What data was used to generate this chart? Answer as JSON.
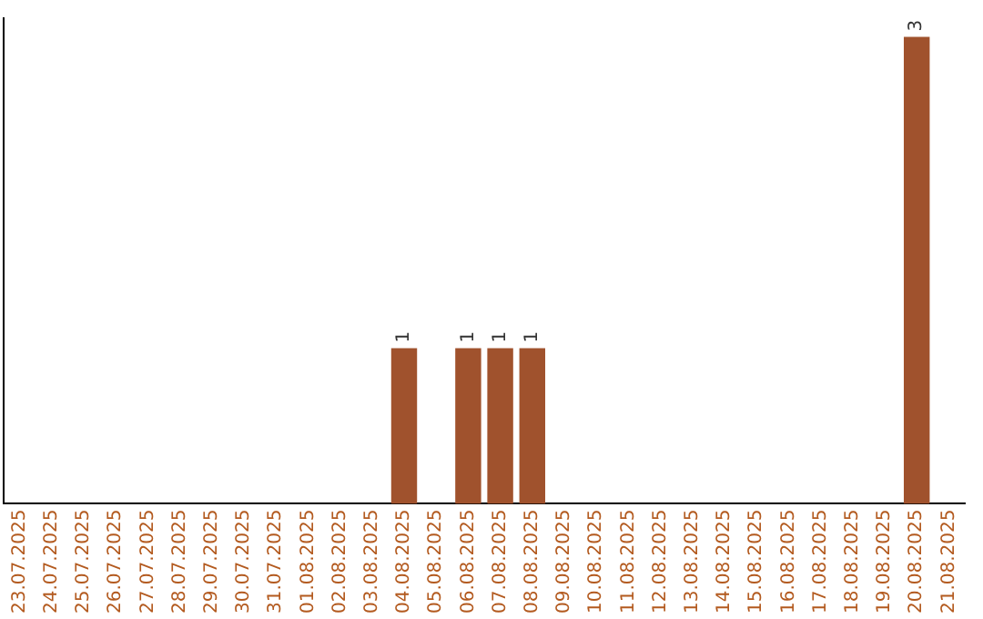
{
  "chart_data": {
    "type": "bar",
    "categories": [
      "23.07.2025",
      "24.07.2025",
      "25.07.2025",
      "26.07.2025",
      "27.07.2025",
      "28.07.2025",
      "29.07.2025",
      "30.07.2025",
      "31.07.2025",
      "01.08.2025",
      "02.08.2025",
      "03.08.2025",
      "04.08.2025",
      "05.08.2025",
      "06.08.2025",
      "07.08.2025",
      "08.08.2025",
      "09.08.2025",
      "10.08.2025",
      "11.08.2025",
      "12.08.2025",
      "13.08.2025",
      "14.08.2025",
      "15.08.2025",
      "16.08.2025",
      "17.08.2025",
      "18.08.2025",
      "19.08.2025",
      "20.08.2025",
      "21.08.2025"
    ],
    "values": [
      null,
      null,
      null,
      null,
      null,
      null,
      null,
      null,
      null,
      null,
      null,
      null,
      1,
      null,
      1,
      1,
      1,
      null,
      null,
      null,
      null,
      null,
      null,
      null,
      null,
      null,
      null,
      null,
      3,
      null
    ],
    "data_labels": true,
    "color": "#a0522d",
    "grid": false,
    "legend": false,
    "tick_labels": "x"
  }
}
